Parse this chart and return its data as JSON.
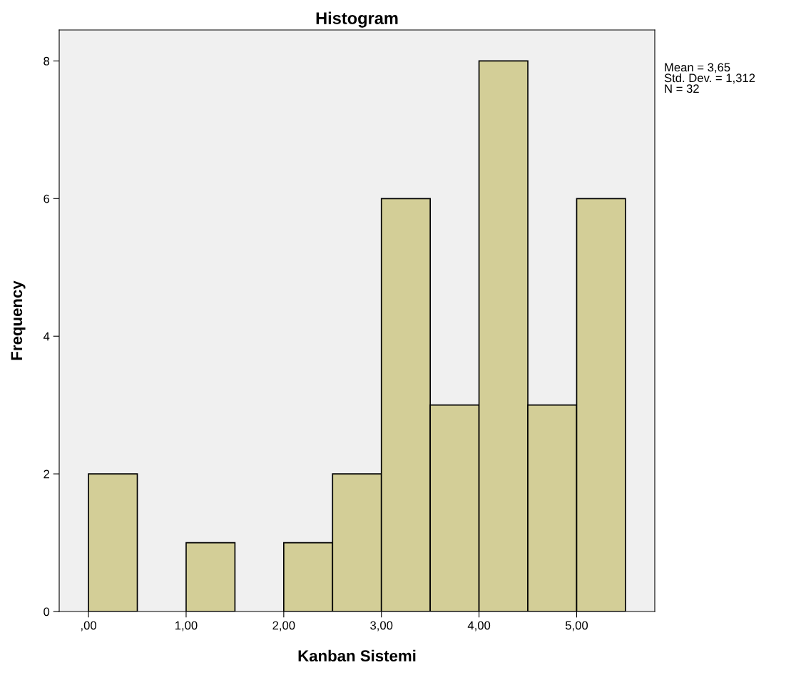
{
  "chart_data": {
    "type": "histogram",
    "title": "Histogram",
    "xlabel": "Kanban Sistemi",
    "ylabel": "Frequency",
    "bins": [
      0,
      0.5,
      1,
      1.5,
      2,
      2.5,
      3,
      3.5,
      4,
      4.5,
      5,
      5.5
    ],
    "values": [
      2,
      0,
      1,
      0,
      1,
      2,
      6,
      3,
      8,
      3,
      6
    ],
    "color": "#d3ce97",
    "xlim": [
      -0.3,
      5.8
    ],
    "ylim": [
      0,
      8.45
    ],
    "xticks": [
      {
        "value": 0,
        "label": ",00"
      },
      {
        "value": 1,
        "label": "1,00"
      },
      {
        "value": 2,
        "label": "2,00"
      },
      {
        "value": 3,
        "label": "3,00"
      },
      {
        "value": 4,
        "label": "4,00"
      },
      {
        "value": 5,
        "label": "5,00"
      }
    ],
    "yticks": [
      0,
      2,
      4,
      6,
      8
    ],
    "grid": false,
    "annotations": [
      "Mean = 3,65\nStd. Dev. = 1,312\nN = 32"
    ]
  }
}
